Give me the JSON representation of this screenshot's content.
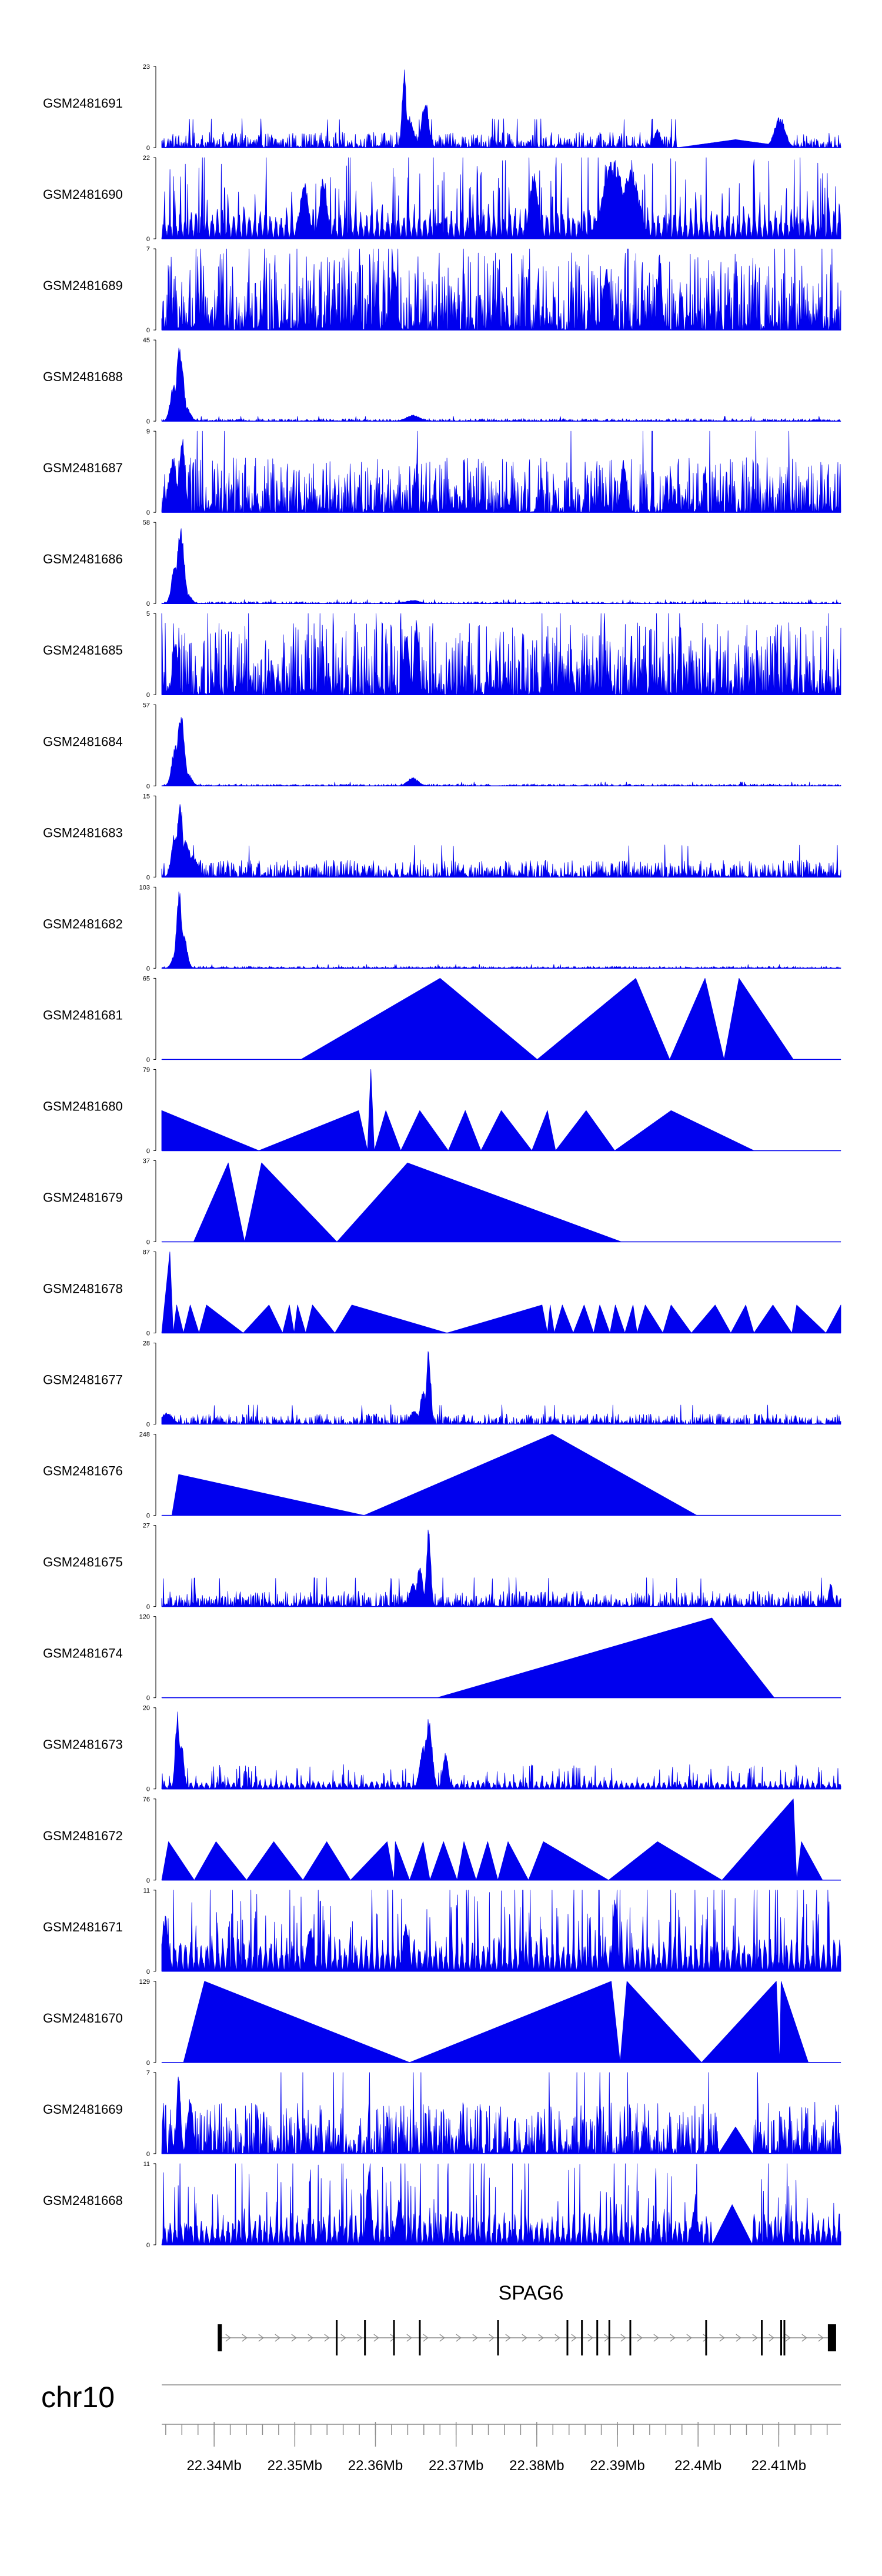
{
  "chart_data": {
    "type": "area",
    "title": "",
    "chromosome": "chr10",
    "gene": {
      "name": "SPAG6",
      "strand": "+",
      "start_mb": 22.3407,
      "end_mb": 22.417,
      "exons_mb": [
        22.3407,
        22.3552,
        22.3587,
        22.3623,
        22.3655,
        22.3752,
        22.3838,
        22.3856,
        22.3875,
        22.389,
        22.3916,
        22.401,
        22.4079,
        22.4103,
        22.4107,
        22.4166
      ]
    },
    "x_axis": {
      "range_mb": [
        22.3335,
        22.4177
      ],
      "tick_labels": [
        "22.34Mb",
        "22.35Mb",
        "22.36Mb",
        "22.37Mb",
        "22.38Mb",
        "22.39Mb",
        "22.4Mb",
        "22.41Mb"
      ],
      "tick_values": [
        22.34,
        22.35,
        22.36,
        22.37,
        22.38,
        22.39,
        22.4,
        22.41
      ],
      "minor_step_mb": 0.002
    },
    "tracks": [
      {
        "name": "GSM2481691",
        "ymin": "0",
        "ymax": "23",
        "max": 23,
        "style": "noise",
        "base": 0.09,
        "density": 1.0,
        "gap": [
          0.76,
          0.93
        ],
        "peaks": [
          [
            0.357,
            23,
            0.003
          ],
          [
            0.388,
            14,
            0.005
          ],
          [
            0.365,
            9,
            0.006
          ],
          [
            0.91,
            9,
            0.008
          ],
          [
            0.73,
            6,
            0.004
          ]
        ]
      },
      {
        "name": "GSM2481690",
        "ymin": "0",
        "ymax": "22",
        "max": 22,
        "style": "mix",
        "base": 0.45,
        "density": 1.0,
        "peaks": [
          [
            0.665,
            22,
            0.015
          ],
          [
            0.69,
            20,
            0.012
          ],
          [
            0.548,
            18,
            0.006
          ],
          [
            0.238,
            18,
            0.005
          ],
          [
            0.21,
            16,
            0.006
          ]
        ]
      },
      {
        "name": "GSM2481689",
        "ymin": "0",
        "ymax": "7",
        "max": 7,
        "style": "noise",
        "base": 0.45,
        "density": 1.0,
        "peaks": [
          [
            0.733,
            7,
            0.003
          ],
          [
            0.342,
            6,
            0.004
          ],
          [
            0.655,
            5.5,
            0.005
          ]
        ]
      },
      {
        "name": "GSM2481688",
        "ymin": "0",
        "ymax": "45",
        "max": 45,
        "style": "noise",
        "base": 0.015,
        "density": 1.0,
        "peaks": [
          [
            0.027,
            44,
            0.005
          ],
          [
            0.018,
            22,
            0.005
          ],
          [
            0.036,
            8,
            0.006
          ],
          [
            0.37,
            3.5,
            0.01
          ]
        ]
      },
      {
        "name": "GSM2481687",
        "ymin": "0",
        "ymax": "9",
        "max": 9,
        "style": "noise",
        "base": 0.32,
        "density": 1.0,
        "peaks": [
          [
            0.03,
            9,
            0.004
          ],
          [
            0.016,
            6,
            0.006
          ],
          [
            0.68,
            6,
            0.004
          ]
        ]
      },
      {
        "name": "GSM2481686",
        "ymin": "0",
        "ymax": "58",
        "max": 58,
        "style": "noise",
        "base": 0.012,
        "density": 1.0,
        "peaks": [
          [
            0.028,
            57,
            0.005
          ],
          [
            0.02,
            30,
            0.005
          ],
          [
            0.037,
            8,
            0.006
          ],
          [
            0.37,
            2.5,
            0.01
          ]
        ]
      },
      {
        "name": "GSM2481685",
        "ymin": "0",
        "ymax": "5",
        "max": 5,
        "style": "noise",
        "base": 0.42,
        "density": 1.0,
        "peaks": [
          [
            0.375,
            5,
            0.003
          ],
          [
            0.36,
            4,
            0.004
          ],
          [
            0.02,
            3.5,
            0.004
          ]
        ]
      },
      {
        "name": "GSM2481684",
        "ymin": "0",
        "ymax": "57",
        "max": 57,
        "style": "noise",
        "base": 0.012,
        "density": 1.0,
        "peaks": [
          [
            0.028,
            56,
            0.005
          ],
          [
            0.02,
            30,
            0.005
          ],
          [
            0.038,
            9,
            0.006
          ],
          [
            0.37,
            6,
            0.008
          ]
        ]
      },
      {
        "name": "GSM2481683",
        "ymin": "0",
        "ymax": "15",
        "max": 15,
        "style": "noise",
        "base": 0.1,
        "density": 1.0,
        "peaks": [
          [
            0.027,
            15,
            0.004
          ],
          [
            0.02,
            9,
            0.005
          ],
          [
            0.036,
            7,
            0.006
          ],
          [
            0.045,
            4,
            0.008
          ]
        ]
      },
      {
        "name": "GSM2481682",
        "ymin": "0",
        "ymax": "103",
        "max": 103,
        "style": "noise",
        "base": 0.012,
        "density": 1.0,
        "peaks": [
          [
            0.026,
            100,
            0.004
          ],
          [
            0.032,
            45,
            0.005
          ],
          [
            0.02,
            20,
            0.005
          ]
        ]
      },
      {
        "name": "GSM2481681",
        "ymin": "0",
        "ymax": "65",
        "max": 65,
        "style": "tri",
        "max_value": 65,
        "pts": [
          [
            0.205,
            0
          ],
          [
            0.41,
            65
          ],
          [
            0.553,
            0
          ],
          [
            0.698,
            65
          ],
          [
            0.748,
            0
          ],
          [
            0.8,
            65
          ],
          [
            0.828,
            0
          ],
          [
            0.85,
            65
          ],
          [
            0.93,
            0
          ]
        ]
      },
      {
        "name": "GSM2481680",
        "ymin": "0",
        "ymax": "79",
        "max": 79,
        "style": "tri",
        "max_value": 79,
        "pts": [
          [
            0.0,
            39
          ],
          [
            0.143,
            0
          ],
          [
            0.29,
            39
          ],
          [
            0.303,
            0
          ],
          [
            0.308,
            79
          ],
          [
            0.313,
            0
          ],
          [
            0.33,
            39
          ],
          [
            0.352,
            0
          ],
          [
            0.38,
            39
          ],
          [
            0.422,
            0
          ],
          [
            0.447,
            39
          ],
          [
            0.47,
            0
          ],
          [
            0.5,
            39
          ],
          [
            0.545,
            0
          ],
          [
            0.568,
            39
          ],
          [
            0.58,
            0
          ],
          [
            0.625,
            39
          ],
          [
            0.667,
            0
          ],
          [
            0.75,
            39
          ],
          [
            0.872,
            0
          ]
        ]
      },
      {
        "name": "GSM2481679",
        "ymin": "0",
        "ymax": "37",
        "max": 37,
        "style": "tri",
        "max_value": 37,
        "pts": [
          [
            0.047,
            0
          ],
          [
            0.098,
            36
          ],
          [
            0.122,
            0
          ],
          [
            0.147,
            36
          ],
          [
            0.258,
            0
          ],
          [
            0.362,
            36
          ],
          [
            0.677,
            0
          ]
        ]
      },
      {
        "name": "GSM2481678",
        "ymin": "0",
        "ymax": "87",
        "max": 87,
        "style": "tri",
        "max_value": 87,
        "pts": [
          [
            0.0,
            0
          ],
          [
            0.012,
            87
          ],
          [
            0.017,
            0
          ],
          [
            0.022,
            30
          ],
          [
            0.032,
            0
          ],
          [
            0.042,
            30
          ],
          [
            0.055,
            0
          ],
          [
            0.066,
            30
          ],
          [
            0.12,
            0
          ],
          [
            0.158,
            30
          ],
          [
            0.178,
            0
          ],
          [
            0.188,
            30
          ],
          [
            0.195,
            0
          ],
          [
            0.2,
            30
          ],
          [
            0.212,
            0
          ],
          [
            0.222,
            30
          ],
          [
            0.255,
            0
          ],
          [
            0.28,
            30
          ],
          [
            0.42,
            0
          ],
          [
            0.56,
            30
          ],
          [
            0.568,
            0
          ],
          [
            0.572,
            30
          ],
          [
            0.578,
            0
          ],
          [
            0.59,
            30
          ],
          [
            0.606,
            0
          ],
          [
            0.622,
            30
          ],
          [
            0.636,
            0
          ],
          [
            0.645,
            30
          ],
          [
            0.66,
            0
          ],
          [
            0.668,
            30
          ],
          [
            0.682,
            0
          ],
          [
            0.694,
            30
          ],
          [
            0.7,
            0
          ],
          [
            0.712,
            30
          ],
          [
            0.738,
            0
          ],
          [
            0.75,
            30
          ],
          [
            0.78,
            0
          ],
          [
            0.815,
            30
          ],
          [
            0.838,
            0
          ],
          [
            0.86,
            30
          ],
          [
            0.872,
            0
          ],
          [
            0.9,
            30
          ],
          [
            0.928,
            0
          ],
          [
            0.935,
            30
          ],
          [
            0.978,
            0
          ],
          [
            1.0,
            30
          ],
          [
            1.0,
            0
          ]
        ]
      },
      {
        "name": "GSM2481677",
        "ymin": "0",
        "ymax": "28",
        "max": 28,
        "style": "noise",
        "base": 0.06,
        "density": 1.0,
        "peaks": [
          [
            0.393,
            28,
            0.003
          ],
          [
            0.385,
            12,
            0.004
          ],
          [
            0.372,
            5,
            0.006
          ],
          [
            0.008,
            4,
            0.008
          ]
        ]
      },
      {
        "name": "GSM2481676",
        "ymin": "0",
        "ymax": "248",
        "max": 248,
        "style": "tri",
        "max_value": 248,
        "pts": [
          [
            0.015,
            0
          ],
          [
            0.025,
            125
          ],
          [
            0.298,
            0
          ],
          [
            0.575,
            248
          ],
          [
            0.788,
            0
          ]
        ]
      },
      {
        "name": "GSM2481675",
        "ymin": "0",
        "ymax": "27",
        "max": 27,
        "style": "noise",
        "base": 0.09,
        "density": 1.0,
        "peaks": [
          [
            0.393,
            27,
            0.003
          ],
          [
            0.38,
            14,
            0.004
          ],
          [
            0.37,
            8,
            0.005
          ],
          [
            0.985,
            8,
            0.003
          ]
        ]
      },
      {
        "name": "GSM2481674",
        "ymin": "0",
        "ymax": "120",
        "max": 120,
        "style": "tri",
        "max_value": 120,
        "pts": [
          [
            0.405,
            0
          ],
          [
            0.81,
            118
          ],
          [
            0.902,
            0
          ]
        ]
      },
      {
        "name": "GSM2481673",
        "ymin": "0",
        "ymax": "20",
        "max": 20,
        "style": "mix",
        "base": 0.12,
        "density": 1.0,
        "peaks": [
          [
            0.393,
            18,
            0.005
          ],
          [
            0.023,
            20,
            0.003
          ],
          [
            0.028,
            13,
            0.004
          ],
          [
            0.385,
            11,
            0.005
          ],
          [
            0.418,
            9,
            0.004
          ]
        ]
      },
      {
        "name": "GSM2481672",
        "ymin": "0",
        "ymax": "76",
        "max": 76,
        "style": "tri",
        "max_value": 76,
        "pts": [
          [
            0.0,
            0
          ],
          [
            0.01,
            36
          ],
          [
            0.048,
            0
          ],
          [
            0.08,
            36
          ],
          [
            0.125,
            0
          ],
          [
            0.165,
            36
          ],
          [
            0.208,
            0
          ],
          [
            0.243,
            36
          ],
          [
            0.278,
            0
          ],
          [
            0.332,
            36
          ],
          [
            0.342,
            0
          ],
          [
            0.344,
            36
          ],
          [
            0.365,
            0
          ],
          [
            0.385,
            36
          ],
          [
            0.395,
            0
          ],
          [
            0.415,
            36
          ],
          [
            0.435,
            0
          ],
          [
            0.445,
            36
          ],
          [
            0.463,
            0
          ],
          [
            0.48,
            36
          ],
          [
            0.495,
            0
          ],
          [
            0.51,
            36
          ],
          [
            0.54,
            0
          ],
          [
            0.562,
            36
          ],
          [
            0.658,
            0
          ],
          [
            0.73,
            36
          ],
          [
            0.825,
            0
          ],
          [
            0.93,
            76
          ],
          [
            0.935,
            0
          ],
          [
            0.942,
            36
          ],
          [
            0.973,
            0
          ]
        ]
      },
      {
        "name": "GSM2481671",
        "ymin": "0",
        "ymax": "11",
        "max": 11,
        "style": "mix",
        "base": 0.5,
        "density": 1.0,
        "peaks": [
          [
            0.668,
            11,
            0.003
          ],
          [
            0.005,
            8,
            0.004
          ],
          [
            0.218,
            7,
            0.004
          ],
          [
            0.36,
            7,
            0.004
          ]
        ]
      },
      {
        "name": "GSM2481670",
        "ymin": "0",
        "ymax": "129",
        "max": 129,
        "style": "tri",
        "max_value": 129,
        "pts": [
          [
            0.032,
            0
          ],
          [
            0.063,
            129
          ],
          [
            0.365,
            0
          ],
          [
            0.662,
            129
          ],
          [
            0.675,
            0
          ],
          [
            0.685,
            129
          ],
          [
            0.795,
            0
          ],
          [
            0.905,
            129
          ],
          [
            0.91,
            0
          ],
          [
            0.912,
            129
          ],
          [
            0.952,
            0
          ]
        ]
      },
      {
        "name": "GSM2481669",
        "ymin": "0",
        "ymax": "7",
        "max": 7,
        "style": "noise",
        "base": 0.3,
        "density": 1.0,
        "gap": [
          0.82,
          0.87
        ],
        "peaks": [
          [
            0.025,
            7,
            0.003
          ],
          [
            0.042,
            5,
            0.004
          ]
        ]
      },
      {
        "name": "GSM2481668",
        "ymin": "0",
        "ymax": "11",
        "max": 11,
        "style": "mix",
        "base": 0.45,
        "density": 1.0,
        "gap": [
          0.81,
          0.87
        ],
        "peaks": [
          [
            0.305,
            11,
            0.003
          ],
          [
            0.35,
            7,
            0.004
          ],
          [
            0.785,
            6,
            0.004
          ]
        ]
      }
    ],
    "colors": {
      "fill": "#0000ee",
      "axis": "#000000",
      "gene": "#000000",
      "intron": "#8a8a8a",
      "chrom_line": "#a8a8a8"
    }
  }
}
